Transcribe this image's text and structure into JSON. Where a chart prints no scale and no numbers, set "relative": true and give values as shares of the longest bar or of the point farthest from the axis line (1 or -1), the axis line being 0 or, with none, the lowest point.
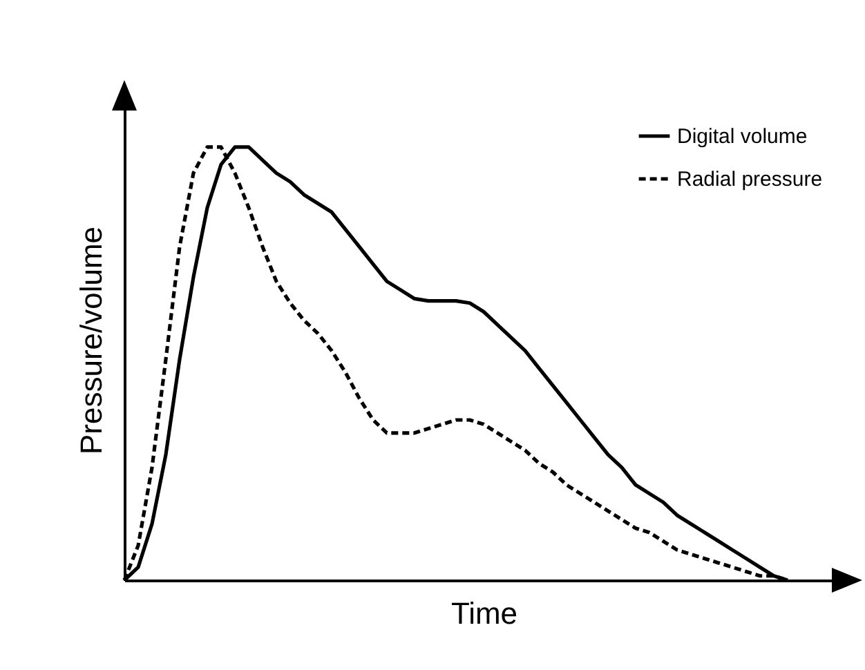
{
  "chart_data": {
    "type": "line",
    "relative": true,
    "xlabel": "Time",
    "ylabel": "Pressure/volume",
    "categories": [
      null,
      null,
      null,
      null,
      null,
      null,
      null,
      null,
      null,
      null,
      null,
      null,
      null,
      null,
      null,
      null,
      null,
      null,
      null,
      null,
      null,
      null,
      null,
      null,
      null,
      null,
      null,
      null,
      null,
      null,
      null,
      null,
      null,
      null,
      null,
      null,
      null,
      null,
      null,
      null,
      null,
      null,
      null,
      null,
      null,
      null,
      null,
      null,
      null,
      null,
      null,
      null,
      null
    ],
    "series": [
      {
        "name": "Digital volume",
        "color": "#000000",
        "line_style": "solid",
        "values": [
          0,
          0.03,
          0.13,
          0.29,
          0.51,
          0.7,
          0.86,
          0.96,
          1,
          1,
          0.97,
          0.94,
          0.92,
          0.89,
          0.87,
          0.85,
          0.81,
          0.77,
          0.73,
          0.69,
          0.67,
          0.65,
          0.645,
          0.645,
          0.645,
          0.64,
          0.62,
          0.59,
          0.56,
          0.53,
          0.49,
          0.45,
          0.41,
          0.37,
          0.33,
          0.29,
          0.26,
          0.22,
          0.2,
          0.18,
          0.15,
          0.13,
          0.11,
          0.09,
          0.07,
          0.05,
          0.03,
          0.01,
          0,
          null,
          null,
          null,
          null
        ]
      },
      {
        "name": "Radial pressure",
        "color": "#000000",
        "line_style": "dashed",
        "values": [
          0,
          0.08,
          0.26,
          0.51,
          0.77,
          0.94,
          1,
          1,
          0.94,
          0.86,
          0.77,
          0.69,
          0.64,
          0.6,
          0.57,
          0.53,
          0.48,
          0.42,
          0.37,
          0.34,
          0.34,
          0.34,
          0.35,
          0.36,
          0.37,
          0.37,
          0.36,
          0.34,
          0.32,
          0.3,
          0.27,
          0.25,
          0.22,
          0.2,
          0.18,
          0.16,
          0.14,
          0.12,
          0.11,
          0.09,
          0.07,
          0.06,
          0.05,
          0.04,
          0.03,
          0.02,
          0.01,
          0.01,
          0,
          null,
          null,
          null,
          null
        ]
      }
    ],
    "legend": "top right"
  }
}
